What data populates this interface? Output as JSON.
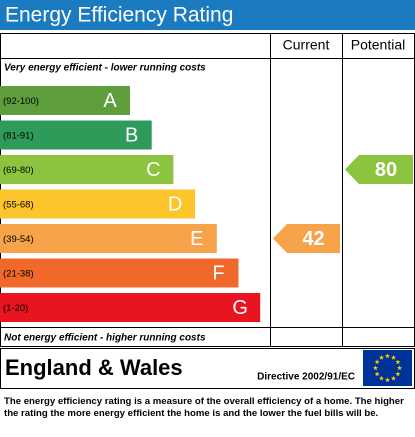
{
  "header": {
    "title": "Energy Efficiency Rating"
  },
  "columns": [
    "Current",
    "Potential"
  ],
  "top_note": "Very energy efficient - lower running costs",
  "bands": [
    {
      "range": "(92-100)",
      "letter": "A",
      "color": "#5f9e3c"
    },
    {
      "range": "(81-91)",
      "letter": "B",
      "color": "#2f9b5a"
    },
    {
      "range": "(69-80)",
      "letter": "C",
      "color": "#8cc43f"
    },
    {
      "range": "(55-68)",
      "letter": "D",
      "color": "#fcc52c"
    },
    {
      "range": "(39-54)",
      "letter": "E",
      "color": "#f7a34a"
    },
    {
      "range": "(21-38)",
      "letter": "F",
      "color": "#f0692a"
    },
    {
      "range": "(1-20)",
      "letter": "G",
      "color": "#e8141f"
    }
  ],
  "ratings": {
    "current": 42,
    "potential": 80
  },
  "bottom_note": "Not energy efficient - higher running costs",
  "footer": {
    "region": "England & Wales",
    "directive": "Directive 2002/91/EC",
    "text": "The energy efficiency rating is a measure of the overall efficiency of a home. The higher the rating the more energy efficient the home is and the lower the fuel bills will be."
  }
}
